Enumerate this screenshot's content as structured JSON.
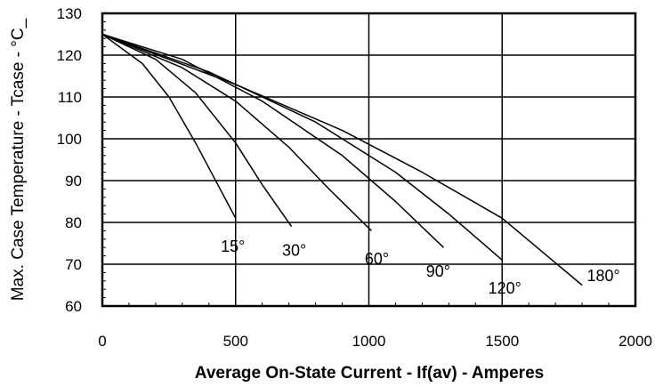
{
  "chart_data": {
    "type": "line",
    "title": "",
    "xlabel": "Average On-State Current - If(av) - Amperes",
    "ylabel": "Max. Case Temperature - Tcase - °C_",
    "xlim": [
      0,
      2000
    ],
    "ylim": [
      60,
      130
    ],
    "x_ticks": [
      0,
      500,
      1000,
      1500,
      2000
    ],
    "y_ticks": [
      60,
      70,
      80,
      90,
      100,
      110,
      120,
      130
    ],
    "x_tick_labels": [
      "0",
      "500",
      "1000",
      "1500",
      "2000"
    ],
    "y_tick_labels": [
      "60",
      "70",
      "80",
      "90",
      "100",
      "110",
      "120",
      "130"
    ],
    "grid": true,
    "legend": "none",
    "series": [
      {
        "name": "15°",
        "x": [
          0,
          150,
          250,
          350,
          450,
          500
        ],
        "y": [
          125,
          118,
          110,
          99,
          87,
          81
        ]
      },
      {
        "name": "30°",
        "x": [
          0,
          200,
          350,
          500,
          600,
          710
        ],
        "y": [
          125,
          119,
          111,
          99,
          89,
          79
        ]
      },
      {
        "name": "60°",
        "x": [
          0,
          300,
          500,
          700,
          850,
          1010
        ],
        "y": [
          125,
          117,
          109,
          98,
          88,
          78
        ]
      },
      {
        "name": "90°",
        "x": [
          0,
          300,
          600,
          900,
          1100,
          1280
        ],
        "y": [
          125,
          119,
          109,
          96,
          85,
          74
        ]
      },
      {
        "name": "120°",
        "x": [
          0,
          400,
          800,
          1100,
          1300,
          1500
        ],
        "y": [
          125,
          116,
          104,
          92,
          82,
          71
        ]
      },
      {
        "name": "180°",
        "x": [
          0,
          500,
          900,
          1200,
          1500,
          1650,
          1800
        ],
        "y": [
          125,
          113,
          102,
          92,
          81,
          73,
          65
        ]
      }
    ],
    "curve_labels": [
      {
        "text": "15°",
        "x": 490,
        "y": 73
      },
      {
        "text": "30°",
        "x": 720,
        "y": 72
      },
      {
        "text": "60°",
        "x": 1030,
        "y": 70
      },
      {
        "text": "90°",
        "x": 1260,
        "y": 67
      },
      {
        "text": "120°",
        "x": 1510,
        "y": 63
      },
      {
        "text": "180°",
        "x": 1880,
        "y": 66
      }
    ]
  },
  "colors": {
    "line": "#000000",
    "grid": "#000000",
    "background": "#ffffff"
  }
}
